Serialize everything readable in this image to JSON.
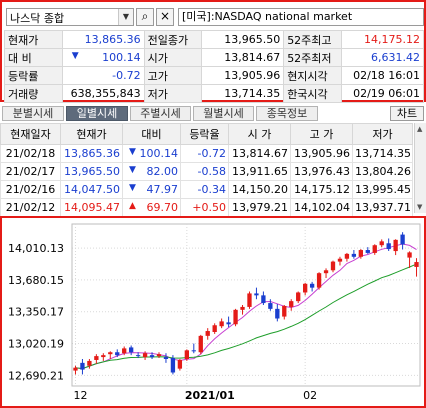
{
  "search": {
    "index_name": "나스닥 종합",
    "market_label": "[미국]:NASDAQ national market"
  },
  "quote": {
    "rows": [
      [
        {
          "label": "현재가",
          "value": "13,865.36",
          "color": "blue"
        },
        {
          "label": "전일종가",
          "value": "13,965.50",
          "color": "black"
        },
        {
          "label": "52주최고",
          "value": "14,175.12",
          "color": "red"
        }
      ],
      [
        {
          "label": "대 비",
          "arrow": "▼",
          "value": "100.14",
          "color": "blue"
        },
        {
          "label": "시가",
          "value": "13,814.67",
          "color": "black"
        },
        {
          "label": "52주최저",
          "value": "6,631.42",
          "color": "blue"
        }
      ],
      [
        {
          "label": "등락률",
          "value": "-0.72",
          "color": "blue"
        },
        {
          "label": "고가",
          "value": "13,905.96",
          "color": "black"
        },
        {
          "label": "현지시각",
          "value": "02/18 16:01",
          "color": "black"
        }
      ],
      [
        {
          "label": "거래량",
          "value": "638,355,843",
          "color": "black"
        },
        {
          "label": "저가",
          "value": "13,714.35",
          "color": "black"
        },
        {
          "label": "한국시각",
          "value": "02/19 06:01",
          "color": "black"
        }
      ]
    ]
  },
  "tabs": [
    "분별시세",
    "일별시세",
    "주별시세",
    "월별시세",
    "종목정보"
  ],
  "active_tab": "일별시세",
  "chart_button": "차트",
  "history": {
    "columns": [
      "현재일자",
      "현재가",
      "대비",
      "등락율",
      "시 가",
      "고 가",
      "저가"
    ],
    "rows": [
      {
        "date": "21/02/18",
        "close": "13,865.36",
        "arrow": "▼",
        "change": "100.14",
        "rate": "-0.72",
        "open": "13,814.67",
        "high": "13,905.96",
        "low": "13,714.35",
        "color": "blue"
      },
      {
        "date": "21/02/17",
        "close": "13,965.50",
        "arrow": "▼",
        "change": "82.00",
        "rate": "-0.58",
        "open": "13,911.65",
        "high": "13,976.43",
        "low": "13,804.26",
        "color": "blue"
      },
      {
        "date": "21/02/16",
        "close": "14,047.50",
        "arrow": "▼",
        "change": "47.97",
        "rate": "-0.34",
        "open": "14,150.20",
        "high": "14,175.12",
        "low": "13,995.45",
        "color": "blue"
      },
      {
        "date": "21/02/12",
        "close": "14,095.47",
        "arrow": "▲",
        "change": "69.70",
        "rate": "+0.50",
        "open": "13,979.21",
        "high": "14,102.04",
        "low": "13,937.71",
        "color": "red"
      }
    ]
  },
  "colors": {
    "up": "#e41b17",
    "down": "#1a3ecf",
    "frame": "#e41b17",
    "ma_short": "#c73fd1",
    "ma_long": "#1e9e2a"
  },
  "chart_data": {
    "type": "candlestick",
    "y_ticks": [
      14010.13,
      13680.15,
      13350.17,
      13020.19,
      12690.21
    ],
    "y_tick_labels": [
      "14,010.13",
      "13,680.15",
      "13,350.17",
      "13,020.19",
      "12,690.21"
    ],
    "ylim": [
      12580,
      14260
    ],
    "x_labels": [
      {
        "text": "12",
        "bar": 0
      },
      {
        "text": "2021/01",
        "bar": 16
      },
      {
        "text": "02",
        "bar": 33
      }
    ],
    "candles": [
      {
        "o": 12740,
        "h": 12790,
        "l": 12700,
        "c": 12770
      },
      {
        "o": 12820,
        "h": 12860,
        "l": 12700,
        "c": 12750
      },
      {
        "o": 12790,
        "h": 12860,
        "l": 12760,
        "c": 12840
      },
      {
        "o": 12850,
        "h": 12910,
        "l": 12810,
        "c": 12890
      },
      {
        "o": 12880,
        "h": 12920,
        "l": 12840,
        "c": 12900
      },
      {
        "o": 12910,
        "h": 12940,
        "l": 12860,
        "c": 12930
      },
      {
        "o": 12930,
        "h": 12960,
        "l": 12880,
        "c": 12900
      },
      {
        "o": 12920,
        "h": 12990,
        "l": 12900,
        "c": 12970
      },
      {
        "o": 12980,
        "h": 13000,
        "l": 12900,
        "c": 12930
      },
      {
        "o": 12900,
        "h": 12930,
        "l": 12870,
        "c": 12890
      },
      {
        "o": 12880,
        "h": 12940,
        "l": 12850,
        "c": 12920
      },
      {
        "o": 12900,
        "h": 12930,
        "l": 12860,
        "c": 12880
      },
      {
        "o": 12890,
        "h": 12930,
        "l": 12870,
        "c": 12910
      },
      {
        "o": 12880,
        "h": 12920,
        "l": 12820,
        "c": 12860
      },
      {
        "o": 12870,
        "h": 12900,
        "l": 12700,
        "c": 12720
      },
      {
        "o": 12760,
        "h": 12860,
        "l": 12740,
        "c": 12850
      },
      {
        "o": 12860,
        "h": 12960,
        "l": 12840,
        "c": 12950
      },
      {
        "o": 12950,
        "h": 13020,
        "l": 12920,
        "c": 12940
      },
      {
        "o": 12930,
        "h": 13110,
        "l": 12910,
        "c": 13100
      },
      {
        "o": 13100,
        "h": 13180,
        "l": 13060,
        "c": 13150
      },
      {
        "o": 13140,
        "h": 13230,
        "l": 13120,
        "c": 13210
      },
      {
        "o": 13200,
        "h": 13280,
        "l": 13180,
        "c": 13250
      },
      {
        "o": 13240,
        "h": 13300,
        "l": 13190,
        "c": 13220
      },
      {
        "o": 13220,
        "h": 13380,
        "l": 13200,
        "c": 13370
      },
      {
        "o": 13370,
        "h": 13420,
        "l": 13320,
        "c": 13400
      },
      {
        "o": 13400,
        "h": 13560,
        "l": 13380,
        "c": 13540
      },
      {
        "o": 13540,
        "h": 13600,
        "l": 13480,
        "c": 13520
      },
      {
        "o": 13520,
        "h": 13560,
        "l": 13420,
        "c": 13440
      },
      {
        "o": 13440,
        "h": 13480,
        "l": 13360,
        "c": 13380
      },
      {
        "o": 13380,
        "h": 13430,
        "l": 13250,
        "c": 13280
      },
      {
        "o": 13300,
        "h": 13420,
        "l": 13270,
        "c": 13410
      },
      {
        "o": 13400,
        "h": 13480,
        "l": 13360,
        "c": 13460
      },
      {
        "o": 13460,
        "h": 13560,
        "l": 13440,
        "c": 13550
      },
      {
        "o": 13550,
        "h": 13650,
        "l": 13520,
        "c": 13640
      },
      {
        "o": 13640,
        "h": 13660,
        "l": 13560,
        "c": 13600
      },
      {
        "o": 13600,
        "h": 13760,
        "l": 13580,
        "c": 13750
      },
      {
        "o": 13750,
        "h": 13800,
        "l": 13700,
        "c": 13780
      },
      {
        "o": 13780,
        "h": 13880,
        "l": 13760,
        "c": 13870
      },
      {
        "o": 13870,
        "h": 13920,
        "l": 13830,
        "c": 13900
      },
      {
        "o": 13900,
        "h": 13960,
        "l": 13870,
        "c": 13950
      },
      {
        "o": 13950,
        "h": 13990,
        "l": 13900,
        "c": 13920
      },
      {
        "o": 13920,
        "h": 14000,
        "l": 13900,
        "c": 13990
      },
      {
        "o": 13990,
        "h": 14020,
        "l": 13950,
        "c": 13960
      },
      {
        "o": 13960,
        "h": 14050,
        "l": 13940,
        "c": 14040
      },
      {
        "o": 14040,
        "h": 14100,
        "l": 14020,
        "c": 14080
      },
      {
        "o": 14060,
        "h": 14110,
        "l": 13980,
        "c": 14000
      },
      {
        "o": 13979.21,
        "h": 14102.04,
        "l": 13937.71,
        "c": 14095.47
      },
      {
        "o": 14150.2,
        "h": 14175.12,
        "l": 13995.45,
        "c": 14047.5
      },
      {
        "o": 13911.65,
        "h": 13976.43,
        "l": 13804.26,
        "c": 13965.5
      },
      {
        "o": 13814.67,
        "h": 13905.96,
        "l": 13714.35,
        "c": 13865.36
      }
    ]
  }
}
